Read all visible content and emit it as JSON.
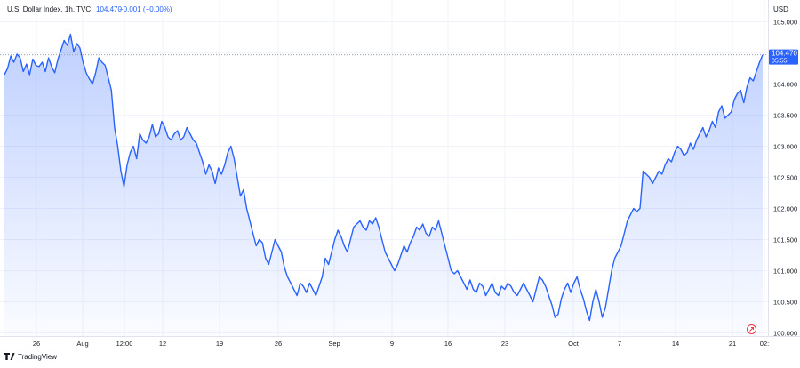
{
  "legend": {
    "symbol": "U.S. Dollar Index, 1h, TVC",
    "last": "104.470",
    "change": "−0.001 (−0.00%)"
  },
  "currency": "USD",
  "price_tag": {
    "price": "104.470",
    "countdown": "05:55"
  },
  "footer": {
    "brand": "TradingView"
  },
  "colors": {
    "line": "#2962ff",
    "text_line": "#1e53e5",
    "grid": "#f0f3fa",
    "tag": "#2962ff",
    "change_pos": "#2962ff"
  },
  "chart_data": {
    "type": "area",
    "title": "U.S. Dollar Index, 1h, TVC",
    "ylim": [
      99.95,
      105.35
    ],
    "y_ticks": [
      "105.000",
      "104.500",
      "104.000",
      "103.500",
      "103.000",
      "102.500",
      "102.000",
      "101.500",
      "101.000",
      "100.500",
      "100.000"
    ],
    "x_labels": [
      "26",
      "Aug",
      "12:00",
      "12",
      "19",
      "26",
      "Sep",
      "9",
      "16",
      "23",
      "Oct",
      "7",
      "14",
      "21",
      "02:"
    ],
    "last_price": 104.47,
    "series": [
      {
        "values": [
          104.15,
          104.25,
          104.45,
          104.35,
          104.48,
          104.42,
          104.2,
          104.32,
          104.15,
          104.4,
          104.3,
          104.28,
          104.35,
          104.2,
          104.42,
          104.28,
          104.18,
          104.4,
          104.55,
          104.7,
          104.62,
          104.8,
          104.52,
          104.65,
          104.58,
          104.35,
          104.18,
          104.08,
          104.0,
          104.18,
          104.42,
          104.35,
          104.3,
          104.1,
          103.9,
          103.3,
          103.0,
          102.6,
          102.35,
          102.7,
          102.9,
          103.0,
          102.8,
          103.2,
          103.1,
          103.05,
          103.15,
          103.35,
          103.15,
          103.2,
          103.4,
          103.3,
          103.15,
          103.1,
          103.2,
          103.25,
          103.1,
          103.15,
          103.3,
          103.2,
          103.1,
          103.05,
          102.9,
          102.75,
          102.55,
          102.7,
          102.6,
          102.4,
          102.65,
          102.55,
          102.7,
          102.9,
          103.0,
          102.8,
          102.5,
          102.2,
          102.3,
          102.0,
          101.8,
          101.6,
          101.4,
          101.5,
          101.45,
          101.2,
          101.1,
          101.3,
          101.5,
          101.4,
          101.3,
          101.05,
          100.9,
          100.8,
          100.7,
          100.6,
          100.8,
          100.75,
          100.65,
          100.8,
          100.7,
          100.6,
          100.75,
          100.9,
          101.2,
          101.1,
          101.3,
          101.5,
          101.65,
          101.55,
          101.4,
          101.3,
          101.5,
          101.7,
          101.75,
          101.8,
          101.7,
          101.65,
          101.8,
          101.75,
          101.85,
          101.7,
          101.5,
          101.3,
          101.2,
          101.1,
          101.0,
          101.1,
          101.25,
          101.4,
          101.3,
          101.45,
          101.55,
          101.7,
          101.65,
          101.75,
          101.6,
          101.55,
          101.7,
          101.65,
          101.8,
          101.6,
          101.4,
          101.2,
          101.0,
          100.95,
          101.0,
          100.9,
          100.8,
          100.7,
          100.85,
          100.7,
          100.65,
          100.8,
          100.75,
          100.6,
          100.7,
          100.8,
          100.65,
          100.6,
          100.75,
          100.7,
          100.8,
          100.75,
          100.65,
          100.6,
          100.7,
          100.8,
          100.7,
          100.6,
          100.5,
          100.7,
          100.9,
          100.85,
          100.75,
          100.6,
          100.45,
          100.25,
          100.3,
          100.55,
          100.7,
          100.8,
          100.65,
          100.8,
          100.9,
          100.7,
          100.55,
          100.35,
          100.2,
          100.5,
          100.7,
          100.5,
          100.25,
          100.4,
          100.7,
          101.0,
          101.2,
          101.3,
          101.4,
          101.6,
          101.8,
          101.9,
          102.0,
          101.95,
          102.0,
          102.6,
          102.55,
          102.5,
          102.4,
          102.5,
          102.6,
          102.55,
          102.7,
          102.8,
          102.75,
          102.9,
          103.0,
          102.95,
          102.85,
          102.9,
          103.05,
          102.95,
          103.1,
          103.2,
          103.3,
          103.15,
          103.25,
          103.4,
          103.3,
          103.55,
          103.65,
          103.45,
          103.5,
          103.55,
          103.75,
          103.85,
          103.9,
          103.7,
          103.95,
          104.1,
          104.05,
          104.2,
          104.35,
          104.47
        ]
      }
    ]
  }
}
